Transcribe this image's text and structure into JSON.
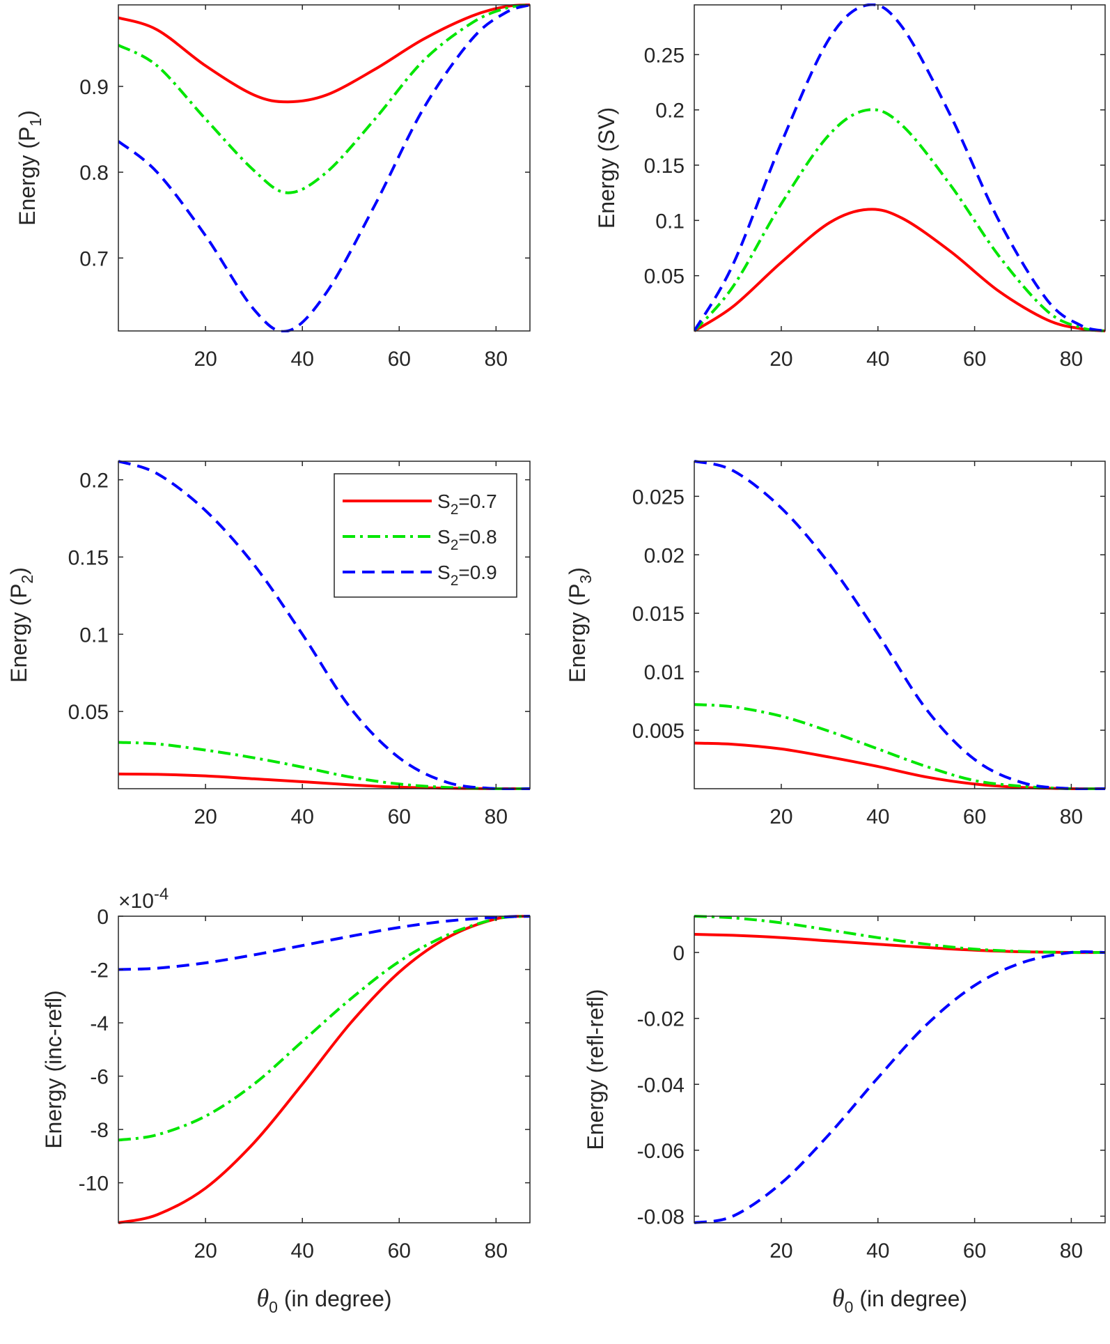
{
  "series_styles": [
    {
      "name": "S2=0.7",
      "color": "#ff0000",
      "dash": "solid"
    },
    {
      "name": "S2=0.8",
      "color": "#00e600",
      "dash": "dashdot"
    },
    {
      "name": "S2=0.9",
      "color": "#0000ff",
      "dash": "dashed"
    }
  ],
  "legend": {
    "entries": [
      {
        "prefix": "S",
        "sub": "2",
        "suffix": "=0.7"
      },
      {
        "prefix": "S",
        "sub": "2",
        "suffix": "=0.8"
      },
      {
        "prefix": "S",
        "sub": "2",
        "suffix": "=0.9"
      }
    ],
    "location": "top-right of P2 panel"
  },
  "xaxis": {
    "label_main": "θ",
    "label_sub": "0",
    "label_rest": " (in degree)"
  },
  "chart_data": [
    {
      "id": "p1",
      "type": "line",
      "ylabel": {
        "main": "Energy (P",
        "sub": "1",
        "close": ")"
      },
      "xlim": [
        2,
        87
      ],
      "ylim": [
        0.615,
        0.995
      ],
      "xticks": [
        20,
        40,
        60,
        80
      ],
      "xtick_labels": [
        "20",
        "40",
        "60",
        "80"
      ],
      "yticks": [
        0.7,
        0.8,
        0.9
      ],
      "ytick_labels": [
        "0.7",
        "0.8",
        "0.9"
      ],
      "exponent": null,
      "x": [
        2,
        10,
        20,
        30,
        37,
        45,
        55,
        65,
        75,
        82,
        87
      ],
      "series": [
        {
          "name": "S2=0.7",
          "values": [
            0.98,
            0.966,
            0.924,
            0.89,
            0.882,
            0.89,
            0.92,
            0.955,
            0.982,
            0.993,
            0.995
          ]
        },
        {
          "name": "S2=0.8",
          "values": [
            0.948,
            0.924,
            0.862,
            0.802,
            0.776,
            0.8,
            0.862,
            0.93,
            0.974,
            0.991,
            0.995
          ]
        },
        {
          "name": "S2=0.9",
          "values": [
            0.836,
            0.8,
            0.726,
            0.64,
            0.615,
            0.66,
            0.762,
            0.874,
            0.955,
            0.986,
            0.995
          ]
        }
      ]
    },
    {
      "id": "sv",
      "type": "line",
      "ylabel": {
        "main": "Energy (SV)",
        "sub": "",
        "close": ""
      },
      "xlim": [
        2,
        87
      ],
      "ylim": [
        0,
        0.295
      ],
      "xticks": [
        20,
        40,
        60,
        80
      ],
      "xtick_labels": [
        "20",
        "40",
        "60",
        "80"
      ],
      "yticks": [
        0.05,
        0.1,
        0.15,
        0.2,
        0.25
      ],
      "ytick_labels": [
        "0.05",
        "0.1",
        "0.15",
        "0.2",
        "0.25"
      ],
      "exponent": null,
      "x": [
        2,
        10,
        20,
        30,
        38,
        45,
        55,
        65,
        75,
        82,
        87
      ],
      "series": [
        {
          "name": "S2=0.7",
          "values": [
            0,
            0.022,
            0.062,
            0.098,
            0.11,
            0.102,
            0.072,
            0.036,
            0.01,
            0.002,
            0
          ]
        },
        {
          "name": "S2=0.8",
          "values": [
            0,
            0.04,
            0.115,
            0.178,
            0.2,
            0.186,
            0.132,
            0.068,
            0.018,
            0.003,
            0
          ]
        },
        {
          "name": "S2=0.9",
          "values": [
            0,
            0.06,
            0.17,
            0.265,
            0.295,
            0.275,
            0.195,
            0.1,
            0.028,
            0.005,
            0
          ]
        }
      ]
    },
    {
      "id": "p2",
      "type": "line",
      "ylabel": {
        "main": "Energy (P",
        "sub": "2",
        "close": ")"
      },
      "xlim": [
        2,
        87
      ],
      "ylim": [
        0,
        0.212
      ],
      "xticks": [
        20,
        40,
        60,
        80
      ],
      "xtick_labels": [
        "20",
        "40",
        "60",
        "80"
      ],
      "yticks": [
        0.05,
        0.1,
        0.15,
        0.2
      ],
      "ytick_labels": [
        "0.05",
        "0.1",
        "0.15",
        "0.2"
      ],
      "exponent": null,
      "x": [
        2,
        10,
        20,
        30,
        40,
        50,
        60,
        70,
        80,
        87
      ],
      "series": [
        {
          "name": "S2=0.7",
          "values": [
            0.0095,
            0.0093,
            0.0083,
            0.0064,
            0.0045,
            0.0025,
            0.001,
            0.0003,
            0,
            0
          ]
        },
        {
          "name": "S2=0.8",
          "values": [
            0.03,
            0.029,
            0.025,
            0.02,
            0.014,
            0.0075,
            0.003,
            0.0008,
            0,
            0
          ]
        },
        {
          "name": "S2=0.9",
          "values": [
            0.212,
            0.204,
            0.18,
            0.145,
            0.1,
            0.052,
            0.02,
            0.004,
            0,
            0
          ]
        }
      ]
    },
    {
      "id": "p3",
      "type": "line",
      "ylabel": {
        "main": "Energy (P",
        "sub": "3",
        "close": ")"
      },
      "xlim": [
        2,
        87
      ],
      "ylim": [
        0,
        0.028
      ],
      "xticks": [
        20,
        40,
        60,
        80
      ],
      "xtick_labels": [
        "20",
        "40",
        "60",
        "80"
      ],
      "yticks": [
        0.005,
        0.01,
        0.015,
        0.02,
        0.025
      ],
      "ytick_labels": [
        "0.005",
        "0.01",
        "0.015",
        "0.02",
        "0.025"
      ],
      "exponent": null,
      "x": [
        2,
        10,
        20,
        30,
        40,
        50,
        60,
        70,
        80,
        87
      ],
      "series": [
        {
          "name": "S2=0.7",
          "values": [
            0.0039,
            0.0038,
            0.0034,
            0.0027,
            0.0019,
            0.001,
            0.0004,
            0.0001,
            0,
            0
          ]
        },
        {
          "name": "S2=0.8",
          "values": [
            0.0072,
            0.007,
            0.0062,
            0.0049,
            0.0034,
            0.0019,
            0.0007,
            0.0002,
            0,
            0
          ]
        },
        {
          "name": "S2=0.9",
          "values": [
            0.028,
            0.0272,
            0.024,
            0.0192,
            0.0132,
            0.0068,
            0.0025,
            0.0005,
            0,
            0
          ]
        }
      ]
    },
    {
      "id": "increfl",
      "type": "line",
      "ylabel": {
        "main": "Energy (inc-refl)",
        "sub": "",
        "close": ""
      },
      "xlim": [
        2,
        87
      ],
      "ylim": [
        -11.5,
        0
      ],
      "xticks": [
        20,
        40,
        60,
        80
      ],
      "xtick_labels": [
        "20",
        "40",
        "60",
        "80"
      ],
      "yticks": [
        -10,
        -8,
        -6,
        -4,
        -2,
        0
      ],
      "ytick_labels": [
        "-10",
        "-8",
        "-6",
        "-4",
        "-2",
        "0"
      ],
      "exponent": {
        "base": "×10",
        "power": "-4"
      },
      "xlabel": true,
      "x": [
        2,
        10,
        20,
        30,
        40,
        50,
        60,
        70,
        80,
        87
      ],
      "series": [
        {
          "name": "S2=0.7",
          "values": [
            -11.5,
            -11.2,
            -10.2,
            -8.5,
            -6.3,
            -4.0,
            -2.1,
            -0.8,
            -0.1,
            0
          ]
        },
        {
          "name": "S2=0.8",
          "values": [
            -8.4,
            -8.2,
            -7.5,
            -6.3,
            -4.7,
            -3.1,
            -1.7,
            -0.7,
            -0.1,
            0
          ]
        },
        {
          "name": "S2=0.9",
          "values": [
            -2.0,
            -1.95,
            -1.75,
            -1.45,
            -1.1,
            -0.75,
            -0.42,
            -0.18,
            -0.04,
            0
          ]
        }
      ]
    },
    {
      "id": "reflrefl",
      "type": "line",
      "ylabel": {
        "main": "Energy (refl-refl)",
        "sub": "",
        "close": ""
      },
      "xlim": [
        2,
        87
      ],
      "ylim": [
        -0.082,
        0.011
      ],
      "xticks": [
        20,
        40,
        60,
        80
      ],
      "xtick_labels": [
        "20",
        "40",
        "60",
        "80"
      ],
      "yticks": [
        -0.08,
        -0.06,
        -0.04,
        -0.02,
        0
      ],
      "ytick_labels": [
        "-0.08",
        "-0.06",
        "-0.04",
        "-0.02",
        "0"
      ],
      "exponent": null,
      "xlabel": true,
      "x": [
        2,
        10,
        20,
        30,
        40,
        50,
        60,
        70,
        80,
        87
      ],
      "series": [
        {
          "name": "S2=0.7",
          "values": [
            0.0055,
            0.0052,
            0.0045,
            0.0035,
            0.0025,
            0.0015,
            0.0007,
            0.0002,
            0,
            0
          ]
        },
        {
          "name": "S2=0.8",
          "values": [
            0.011,
            0.0105,
            0.009,
            0.0068,
            0.0045,
            0.0025,
            0.001,
            0.0003,
            0,
            0
          ]
        },
        {
          "name": "S2=0.9",
          "values": [
            -0.082,
            -0.08,
            -0.07,
            -0.055,
            -0.038,
            -0.022,
            -0.01,
            -0.003,
            0,
            0
          ]
        }
      ]
    }
  ]
}
